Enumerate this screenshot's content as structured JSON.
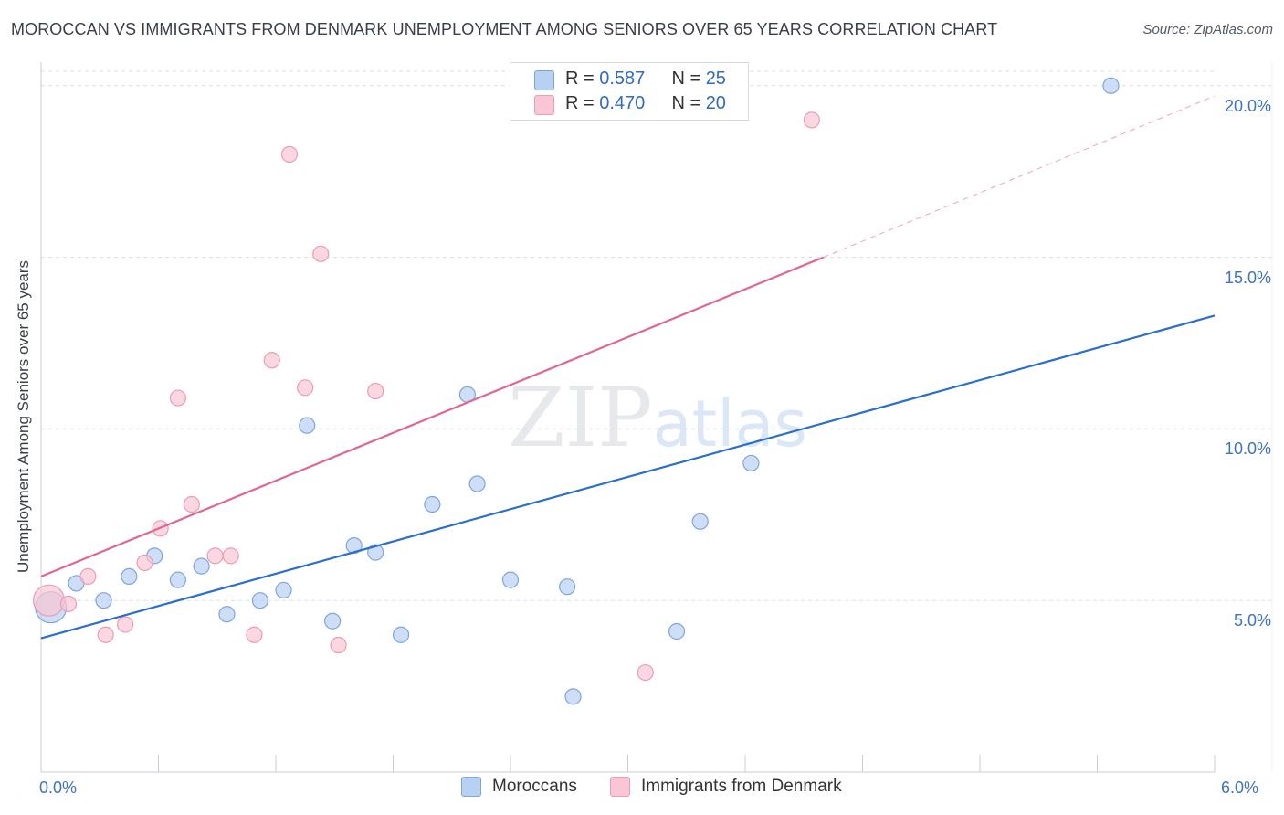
{
  "title": "MOROCCAN VS IMMIGRANTS FROM DENMARK UNEMPLOYMENT AMONG SENIORS OVER 65 YEARS CORRELATION CHART",
  "source": "Source: ZipAtlas.com",
  "watermark": "ZIPatlas",
  "colors": {
    "blue_fill": "#b8d0f2",
    "blue_stroke": "#7ea6de",
    "blue_line": "#2a6fcc",
    "pink_fill": "#f8c6d4",
    "pink_stroke": "#eb9db5",
    "pink_line": "#e0678e",
    "axis_text": "#3e72c4",
    "grid": "#d9dde3"
  },
  "legend_top": {
    "rows": [
      {
        "r_label": "R = ",
        "r_value": "0.587",
        "n_label": "N = ",
        "n_value": "25",
        "series": "blue"
      },
      {
        "r_label": "R = ",
        "r_value": "0.470",
        "n_label": "N = ",
        "n_value": "20",
        "series": "pink"
      }
    ]
  },
  "legend_bottom": [
    {
      "label": "Moroccans",
      "series": "blue"
    },
    {
      "label": "Immigrants from Denmark",
      "series": "pink"
    }
  ],
  "chart_data": {
    "type": "scatter",
    "title": "MOROCCAN VS IMMIGRANTS FROM DENMARK UNEMPLOYMENT AMONG SENIORS OVER 65 YEARS CORRELATION CHART",
    "xlabel": "",
    "ylabel": "Unemployment Among Seniors over 65 years",
    "xlim": [
      0,
      6
    ],
    "ylim": [
      0,
      20.5
    ],
    "x_tick_labels": [
      "0.0%",
      "6.0%"
    ],
    "y_ticks": [
      {
        "value": 5,
        "label": "5.0%"
      },
      {
        "value": 10,
        "label": "10.0%"
      },
      {
        "value": 15,
        "label": "15.0%"
      },
      {
        "value": 20,
        "label": "20.0%"
      }
    ],
    "series": [
      {
        "name": "Moroccans",
        "color": "blue",
        "r": 0.587,
        "n": 25,
        "points": [
          {
            "x": 0.05,
            "y": 4.8,
            "size": "large"
          },
          {
            "x": 0.18,
            "y": 5.5
          },
          {
            "x": 0.32,
            "y": 5.0
          },
          {
            "x": 0.45,
            "y": 5.7
          },
          {
            "x": 0.58,
            "y": 6.3
          },
          {
            "x": 0.7,
            "y": 5.6
          },
          {
            "x": 0.82,
            "y": 6.0
          },
          {
            "x": 0.95,
            "y": 4.6
          },
          {
            "x": 1.12,
            "y": 5.0
          },
          {
            "x": 1.24,
            "y": 5.3
          },
          {
            "x": 1.36,
            "y": 10.1
          },
          {
            "x": 1.49,
            "y": 4.4
          },
          {
            "x": 1.6,
            "y": 6.6
          },
          {
            "x": 1.71,
            "y": 6.4
          },
          {
            "x": 1.84,
            "y": 4.0
          },
          {
            "x": 2.0,
            "y": 7.8
          },
          {
            "x": 2.18,
            "y": 11.0
          },
          {
            "x": 2.23,
            "y": 8.4
          },
          {
            "x": 2.4,
            "y": 5.6
          },
          {
            "x": 2.69,
            "y": 5.4
          },
          {
            "x": 2.72,
            "y": 2.2
          },
          {
            "x": 3.25,
            "y": 4.1
          },
          {
            "x": 3.37,
            "y": 7.3
          },
          {
            "x": 3.63,
            "y": 9.0
          },
          {
            "x": 5.47,
            "y": 20.0
          }
        ],
        "trend": {
          "x_start": 0.0,
          "y_start": 3.9,
          "x_end": 6.0,
          "y_end": 13.3
        }
      },
      {
        "name": "Immigrants from Denmark",
        "color": "pink",
        "r": 0.47,
        "n": 20,
        "points": [
          {
            "x": 0.04,
            "y": 5.0,
            "size": "large"
          },
          {
            "x": 0.14,
            "y": 4.9
          },
          {
            "x": 0.24,
            "y": 5.7
          },
          {
            "x": 0.33,
            "y": 4.0
          },
          {
            "x": 0.43,
            "y": 4.3
          },
          {
            "x": 0.53,
            "y": 6.1
          },
          {
            "x": 0.61,
            "y": 7.1
          },
          {
            "x": 0.7,
            "y": 10.9
          },
          {
            "x": 0.77,
            "y": 7.8
          },
          {
            "x": 0.89,
            "y": 6.3
          },
          {
            "x": 0.97,
            "y": 6.3
          },
          {
            "x": 1.09,
            "y": 4.0
          },
          {
            "x": 1.18,
            "y": 12.0
          },
          {
            "x": 1.27,
            "y": 18.0
          },
          {
            "x": 1.35,
            "y": 11.2
          },
          {
            "x": 1.43,
            "y": 15.1
          },
          {
            "x": 1.52,
            "y": 3.7
          },
          {
            "x": 1.71,
            "y": 11.1
          },
          {
            "x": 3.09,
            "y": 2.9
          },
          {
            "x": 3.94,
            "y": 19.0
          }
        ],
        "trend": {
          "x_start": 0.0,
          "y_start": 5.7,
          "x_end": 4.0,
          "y_end": 15.0,
          "x_dash_end": 6.0,
          "y_dash_end": 19.7
        }
      }
    ]
  }
}
